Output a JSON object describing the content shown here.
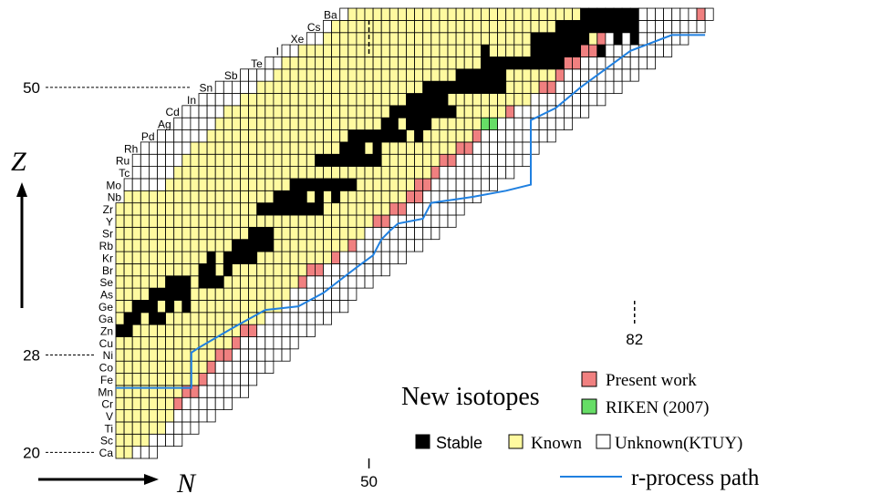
{
  "chart_data": {
    "type": "heatmap",
    "title": "",
    "xlabel": "N",
    "ylabel": "Z",
    "z_range": [
      20,
      56
    ],
    "n_range": [
      20,
      91
    ],
    "element_labels": [
      {
        "z": 20,
        "symbol": "Ca"
      },
      {
        "z": 21,
        "symbol": "Sc"
      },
      {
        "z": 22,
        "symbol": "Ti"
      },
      {
        "z": 23,
        "symbol": "V"
      },
      {
        "z": 24,
        "symbol": "Cr"
      },
      {
        "z": 25,
        "symbol": "Mn"
      },
      {
        "z": 26,
        "symbol": "Fe"
      },
      {
        "z": 27,
        "symbol": "Co"
      },
      {
        "z": 28,
        "symbol": "Ni"
      },
      {
        "z": 29,
        "symbol": "Cu"
      },
      {
        "z": 30,
        "symbol": "Zn"
      },
      {
        "z": 31,
        "symbol": "Ga"
      },
      {
        "z": 32,
        "symbol": "Ge"
      },
      {
        "z": 33,
        "symbol": "As"
      },
      {
        "z": 34,
        "symbol": "Se"
      },
      {
        "z": 35,
        "symbol": "Br"
      },
      {
        "z": 36,
        "symbol": "Kr"
      },
      {
        "z": 37,
        "symbol": "Rb"
      },
      {
        "z": 38,
        "symbol": "Sr"
      },
      {
        "z": 39,
        "symbol": "Y"
      },
      {
        "z": 40,
        "symbol": "Zr"
      },
      {
        "z": 41,
        "symbol": "Nb"
      },
      {
        "z": 42,
        "symbol": "Mo"
      },
      {
        "z": 43,
        "symbol": "Tc"
      },
      {
        "z": 44,
        "symbol": "Ru"
      },
      {
        "z": 45,
        "symbol": "Rh"
      },
      {
        "z": 46,
        "symbol": "Pd"
      },
      {
        "z": 47,
        "symbol": "Ag"
      },
      {
        "z": 48,
        "symbol": "Cd"
      },
      {
        "z": 49,
        "symbol": "In"
      },
      {
        "z": 50,
        "symbol": "Sn"
      },
      {
        "z": 51,
        "symbol": "Sb"
      },
      {
        "z": 52,
        "symbol": "Te"
      },
      {
        "z": 53,
        "symbol": "I"
      },
      {
        "z": 54,
        "symbol": "Xe"
      },
      {
        "z": 55,
        "symbol": "Cs"
      },
      {
        "z": 56,
        "symbol": "Ba"
      }
    ],
    "magic_numbers": {
      "z": [
        {
          "z": 20,
          "label": "20"
        },
        {
          "z": 28,
          "label": "28"
        },
        {
          "z": 50,
          "label": "50"
        }
      ],
      "n": [
        {
          "n": 50,
          "label": "50"
        },
        {
          "n": 82,
          "label": "82"
        }
      ]
    },
    "rows": [
      {
        "z": 20,
        "unknown_from": 20,
        "unknown_to": 24,
        "known_from": 20,
        "known_to": 21,
        "present": []
      },
      {
        "z": 21,
        "unknown_from": 20,
        "unknown_to": 27,
        "known_from": 20,
        "known_to": 23,
        "present": []
      },
      {
        "z": 22,
        "unknown_from": 20,
        "unknown_to": 29,
        "known_from": 20,
        "known_to": 25,
        "present": []
      },
      {
        "z": 23,
        "unknown_from": 20,
        "unknown_to": 31,
        "known_from": 20,
        "known_to": 26,
        "present": []
      },
      {
        "z": 24,
        "unknown_from": 20,
        "unknown_to": 33,
        "known_from": 20,
        "known_to": 27,
        "present": [
          27
        ]
      },
      {
        "z": 25,
        "unknown_from": 20,
        "unknown_to": 35,
        "known_from": 20,
        "known_to": 29,
        "present": [
          28,
          29
        ]
      },
      {
        "z": 26,
        "unknown_from": 20,
        "unknown_to": 36,
        "known_from": 20,
        "known_to": 30,
        "present": [
          30
        ]
      },
      {
        "z": 27,
        "unknown_from": 20,
        "unknown_to": 38,
        "known_from": 20,
        "known_to": 31,
        "present": [
          31
        ]
      },
      {
        "z": 28,
        "unknown_from": 20,
        "unknown_to": 40,
        "known_from": 20,
        "known_to": 33,
        "present": [
          32,
          33
        ]
      },
      {
        "z": 29,
        "unknown_from": 20,
        "unknown_to": 41,
        "known_from": 20,
        "known_to": 34,
        "present": [
          34
        ]
      },
      {
        "z": 30,
        "unknown_from": 20,
        "unknown_to": 43,
        "known_from": 20,
        "known_to": 36,
        "present": [
          35,
          36
        ]
      },
      {
        "z": 31,
        "unknown_from": 20,
        "unknown_to": 45,
        "known_from": 20,
        "known_to": 37,
        "present": []
      },
      {
        "z": 32,
        "unknown_from": 20,
        "unknown_to": 47,
        "known_from": 20,
        "known_to": 39,
        "present": []
      },
      {
        "z": 33,
        "unknown_from": 20,
        "unknown_to": 48,
        "known_from": 20,
        "known_to": 40,
        "present": []
      },
      {
        "z": 34,
        "unknown_from": 20,
        "unknown_to": 50,
        "known_from": 20,
        "known_to": 42,
        "present": [
          42
        ]
      },
      {
        "z": 35,
        "unknown_from": 20,
        "unknown_to": 52,
        "known_from": 20,
        "known_to": 44,
        "present": [
          43,
          44
        ]
      },
      {
        "z": 36,
        "unknown_from": 20,
        "unknown_to": 54,
        "known_from": 20,
        "known_to": 46,
        "present": [
          46
        ]
      },
      {
        "z": 37,
        "unknown_from": 20,
        "unknown_to": 56,
        "known_from": 20,
        "known_to": 48,
        "present": [
          48
        ]
      },
      {
        "z": 38,
        "unknown_from": 20,
        "unknown_to": 58,
        "known_from": 20,
        "known_to": 49,
        "present": []
      },
      {
        "z": 39,
        "unknown_from": 20,
        "unknown_to": 60,
        "known_from": 20,
        "known_to": 51,
        "present": [
          51,
          52
        ]
      },
      {
        "z": 40,
        "unknown_from": 20,
        "unknown_to": 61,
        "known_from": 20,
        "known_to": 53,
        "present": [
          53,
          54
        ]
      },
      {
        "z": 41,
        "unknown_from": 21,
        "unknown_to": 63,
        "known_from": 21,
        "known_to": 55,
        "present": [
          55,
          56
        ]
      },
      {
        "z": 42,
        "unknown_from": 21,
        "unknown_to": 65,
        "known_from": 26,
        "known_to": 57,
        "present": [
          56,
          57
        ]
      },
      {
        "z": 43,
        "unknown_from": 22,
        "unknown_to": 67,
        "known_from": 27,
        "known_to": 58,
        "present": [
          58
        ]
      },
      {
        "z": 44,
        "unknown_from": 22,
        "unknown_to": 69,
        "known_from": 28,
        "known_to": 60,
        "present": [
          59,
          60
        ]
      },
      {
        "z": 45,
        "unknown_from": 23,
        "unknown_to": 70,
        "known_from": 29,
        "known_to": 61,
        "present": [
          61,
          62
        ]
      },
      {
        "z": 46,
        "unknown_from": 25,
        "unknown_to": 72,
        "known_from": 31,
        "known_to": 63,
        "present": [
          63
        ]
      },
      {
        "z": 47,
        "unknown_from": 27,
        "unknown_to": 74,
        "known_from": 32,
        "known_to": 65,
        "present": [],
        "riken": [
          64,
          65
        ]
      },
      {
        "z": 48,
        "unknown_from": 28,
        "unknown_to": 76,
        "known_from": 33,
        "known_to": 67,
        "present": [
          67
        ]
      },
      {
        "z": 49,
        "unknown_from": 30,
        "unknown_to": 78,
        "known_from": 35,
        "known_to": 69,
        "present": []
      },
      {
        "z": 50,
        "unknown_from": 32,
        "unknown_to": 80,
        "known_from": 37,
        "known_to": 71,
        "present": [
          71,
          72
        ]
      },
      {
        "z": 51,
        "unknown_from": 35,
        "unknown_to": 82,
        "known_from": 39,
        "known_to": 72,
        "present": [
          73
        ]
      },
      {
        "z": 52,
        "unknown_from": 38,
        "unknown_to": 84,
        "known_from": 40,
        "known_to": 75,
        "present": [
          74,
          75
        ]
      },
      {
        "z": 53,
        "unknown_from": 40,
        "unknown_to": 86,
        "known_from": 42,
        "known_to": 76,
        "present": [
          76,
          77
        ]
      },
      {
        "z": 54,
        "unknown_from": 43,
        "unknown_to": 88,
        "known_from": 45,
        "known_to": 78,
        "present": [
          78
        ]
      },
      {
        "z": 55,
        "unknown_from": 45,
        "unknown_to": 90,
        "known_from": 46,
        "known_to": 80,
        "present": []
      },
      {
        "z": 56,
        "unknown_from": 47,
        "unknown_to": 91,
        "known_from": 48,
        "known_to": 82,
        "present": [
          90
        ]
      }
    ],
    "stable": [
      {
        "z": 20,
        "n": []
      },
      {
        "z": 21,
        "n": []
      },
      {
        "z": 22,
        "n": []
      },
      {
        "z": 23,
        "n": []
      },
      {
        "z": 24,
        "n": []
      },
      {
        "z": 25,
        "n": []
      },
      {
        "z": 26,
        "n": []
      },
      {
        "z": 27,
        "n": []
      },
      {
        "z": 28,
        "n": []
      },
      {
        "z": 29,
        "n": []
      },
      {
        "z": 30,
        "n": [
          20,
          21
        ]
      },
      {
        "z": 31,
        "n": [
          21,
          22,
          24,
          25
        ]
      },
      {
        "z": 32,
        "n": [
          22,
          23,
          24,
          26,
          28
        ]
      },
      {
        "z": 33,
        "n": [
          24,
          25,
          26,
          27,
          28
        ]
      },
      {
        "z": 34,
        "n": [
          26,
          27,
          28,
          30,
          31,
          32
        ]
      },
      {
        "z": 35,
        "n": [
          30,
          31,
          33
        ]
      },
      {
        "z": 36,
        "n": [
          31,
          33,
          34,
          35,
          36
        ]
      },
      {
        "z": 37,
        "n": [
          34,
          35,
          36,
          37,
          38
        ]
      },
      {
        "z": 38,
        "n": [
          36,
          37,
          38
        ]
      },
      {
        "z": 39,
        "n": []
      },
      {
        "z": 40,
        "n": [
          37,
          38,
          39,
          40,
          41,
          42,
          43,
          44
        ]
      },
      {
        "z": 41,
        "n": [
          39,
          40,
          41,
          42,
          44,
          46
        ]
      },
      {
        "z": 42,
        "n": [
          41,
          42,
          43,
          44,
          45,
          46,
          47,
          48
        ]
      },
      {
        "z": 43,
        "n": []
      },
      {
        "z": 44,
        "n": [
          44,
          45,
          46,
          47,
          48,
          49,
          50,
          51
        ]
      },
      {
        "z": 45,
        "n": [
          47,
          48,
          49,
          51
        ]
      },
      {
        "z": 46,
        "n": [
          48,
          49,
          50,
          51,
          52,
          53,
          54,
          56
        ]
      },
      {
        "z": 47,
        "n": [
          52,
          53,
          55,
          56,
          57
        ]
      },
      {
        "z": 48,
        "n": [
          53,
          54,
          55,
          56,
          57,
          58,
          59,
          60
        ]
      },
      {
        "z": 49,
        "n": [
          55,
          56,
          57,
          58,
          59
        ]
      },
      {
        "z": 50,
        "n": [
          57,
          58,
          59,
          60,
          61,
          62,
          63,
          64,
          65,
          66
        ]
      },
      {
        "z": 51,
        "n": [
          61,
          62,
          63,
          64,
          65,
          66
        ]
      },
      {
        "z": 52,
        "n": [
          64,
          65,
          66,
          67,
          68,
          69,
          70,
          71,
          72,
          73
        ]
      },
      {
        "z": 53,
        "n": [
          64,
          70,
          71,
          72,
          73,
          74,
          75,
          76,
          77,
          78
        ]
      },
      {
        "z": 54,
        "n": [
          70,
          71,
          72,
          73,
          74,
          75,
          76,
          78,
          80,
          82
        ]
      },
      {
        "z": 55,
        "n": [
          73,
          74,
          75,
          76,
          77,
          78,
          79,
          80,
          81,
          82
        ]
      },
      {
        "z": 56,
        "n": [
          76,
          77,
          78,
          79,
          80,
          81,
          82
        ]
      }
    ],
    "r_process_path": [
      [
        20,
        25.3
      ],
      [
        29.1,
        25.3
      ],
      [
        29.1,
        28.2
      ],
      [
        30,
        28.6
      ],
      [
        34,
        30.2
      ],
      [
        38,
        31.7
      ],
      [
        42,
        32.0
      ],
      [
        45,
        33.1
      ],
      [
        49,
        35.2
      ],
      [
        51,
        36.2
      ],
      [
        52,
        37.5
      ],
      [
        53,
        38.2
      ],
      [
        54,
        38.8
      ],
      [
        57,
        39.2
      ],
      [
        58,
        40.5
      ],
      [
        63,
        41.0
      ],
      [
        67,
        41.5
      ],
      [
        70,
        42.0
      ],
      [
        70,
        47.3
      ],
      [
        73,
        48.3
      ],
      [
        76,
        50.0
      ],
      [
        79,
        51.5
      ],
      [
        82,
        53.0
      ],
      [
        87,
        54.3
      ],
      [
        91,
        54.3
      ]
    ],
    "legend": {
      "title": "New isotopes",
      "present_work": "Present work",
      "riken": "RIKEN (2007)",
      "stable": "Stable",
      "known": "Known",
      "unknown": "Unknown(KTUY)",
      "r_process": "r-process path"
    },
    "colors": {
      "stable": "#000000",
      "known": "#fffaa0",
      "unknown": "#ffffff",
      "present": "#f08080",
      "riken": "#66dd66",
      "r_process": "#2080e0",
      "grid": "#000000"
    }
  }
}
